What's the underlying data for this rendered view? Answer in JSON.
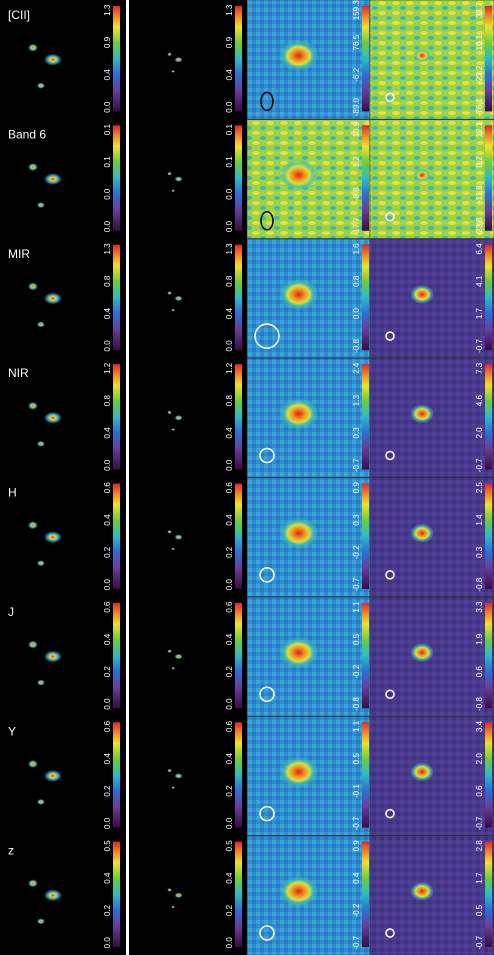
{
  "rows": [
    {
      "label": "[CII]",
      "panels": [
        {
          "ticks": [
            "0.0",
            "0.4",
            "0.9",
            "1.3"
          ]
        },
        {
          "ticks": [
            "0.0",
            "0.4",
            "0.9",
            "1.3"
          ]
        },
        {
          "ticks": [
            "-89.0",
            "-6.2",
            "76.5",
            "159.3"
          ]
        },
        {
          "ticks": [
            "-76.1",
            "-23.2",
            "10.1",
            "33.7"
          ]
        }
      ]
    },
    {
      "label": "Band 6",
      "panels": [
        {
          "ticks": [
            "0.0",
            "0.0",
            "0.1",
            "0.1"
          ]
        },
        {
          "ticks": [
            "0.0",
            "0.0",
            "0.1",
            "0.1"
          ]
        },
        {
          "ticks": [
            "-17.7",
            "-8.8",
            "1.2",
            "10.9"
          ]
        },
        {
          "ticks": [
            "-23.8",
            "-11.8",
            "0.2",
            "12.1"
          ]
        }
      ]
    },
    {
      "label": "MIR",
      "panels": [
        {
          "ticks": [
            "0.0",
            "0.4",
            "0.8",
            "1.3"
          ]
        },
        {
          "ticks": [
            "0.0",
            "0.4",
            "0.8",
            "1.3"
          ]
        },
        {
          "ticks": [
            "-0.8",
            "0.0",
            "0.8",
            "1.6"
          ]
        },
        {
          "ticks": [
            "-0.7",
            "1.7",
            "4.1",
            "6.4"
          ]
        }
      ]
    },
    {
      "label": "NIR",
      "panels": [
        {
          "ticks": [
            "0.0",
            "0.4",
            "0.8",
            "1.2"
          ]
        },
        {
          "ticks": [
            "0.0",
            "0.4",
            "0.8",
            "1.2"
          ]
        },
        {
          "ticks": [
            "-0.7",
            "0.3",
            "1.3",
            "2.4"
          ]
        },
        {
          "ticks": [
            "-0.7",
            "2.0",
            "4.6",
            "7.3"
          ]
        }
      ]
    },
    {
      "label": "H",
      "panels": [
        {
          "ticks": [
            "0.0",
            "0.2",
            "0.4",
            "0.6"
          ]
        },
        {
          "ticks": [
            "0.0",
            "0.2",
            "0.4",
            "0.6"
          ]
        },
        {
          "ticks": [
            "-0.7",
            "-0.2",
            "0.3",
            "0.9"
          ]
        },
        {
          "ticks": [
            "-0.8",
            "0.3",
            "1.4",
            "2.5"
          ]
        }
      ]
    },
    {
      "label": "J",
      "panels": [
        {
          "ticks": [
            "0.0",
            "0.2",
            "0.4",
            "0.6"
          ]
        },
        {
          "ticks": [
            "0.0",
            "0.2",
            "0.4",
            "0.6"
          ]
        },
        {
          "ticks": [
            "-0.8",
            "-0.2",
            "0.5",
            "1.1"
          ]
        },
        {
          "ticks": [
            "-0.8",
            "0.6",
            "1.9",
            "3.3"
          ]
        }
      ]
    },
    {
      "label": "Y",
      "panels": [
        {
          "ticks": [
            "0.0",
            "0.2",
            "0.4",
            "0.6"
          ]
        },
        {
          "ticks": [
            "0.0",
            "0.2",
            "0.4",
            "0.6"
          ]
        },
        {
          "ticks": [
            "-0.7",
            "-0.1",
            "0.5",
            "1.1"
          ]
        },
        {
          "ticks": [
            "-0.7",
            "0.6",
            "2.0",
            "3.4"
          ]
        }
      ]
    },
    {
      "label": "z",
      "panels": [
        {
          "ticks": [
            "0.0",
            "0.2",
            "0.4",
            "0.5"
          ]
        },
        {
          "ticks": [
            "0.0",
            "0.2",
            "0.4",
            "0.5"
          ]
        },
        {
          "ticks": [
            "-0.7",
            "-0.2",
            "0.4",
            "0.9"
          ]
        },
        {
          "ticks": [
            "-0.7",
            "0.5",
            "1.7",
            "2.8"
          ]
        }
      ]
    }
  ]
}
